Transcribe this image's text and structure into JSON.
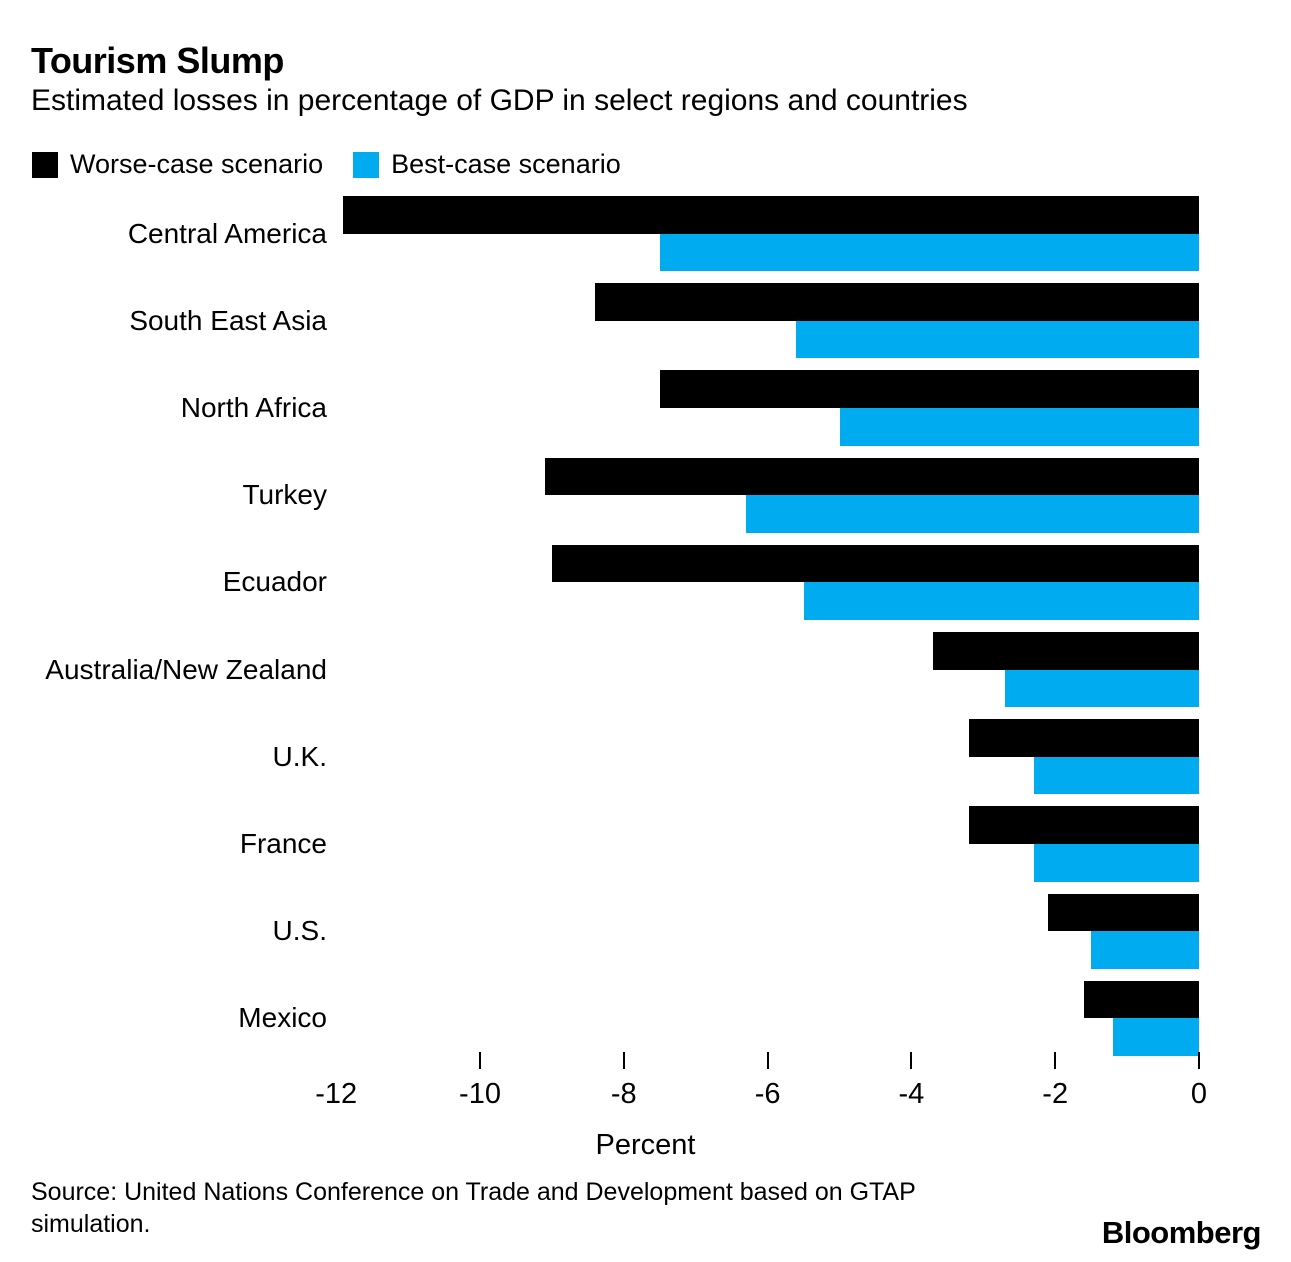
{
  "page": {
    "title": "Tourism Slump",
    "subtitle": "Estimated losses in percentage of GDP in select regions and countries",
    "source_line1": "Source: United Nations Conference on Trade and Development based on GTAP",
    "source_line2": "simulation.",
    "brand": "Bloomberg"
  },
  "legend": [
    {
      "label": "Worse-case scenario",
      "color": "#000000"
    },
    {
      "label": "Best-case scenario",
      "color": "#00abef"
    }
  ],
  "chart_data": {
    "type": "bar",
    "orientation": "horizontal",
    "title": "Tourism Slump",
    "subtitle": "Estimated losses in percentage of GDP in select regions and countries",
    "xlabel": "Percent",
    "xlim": [
      -12,
      0
    ],
    "xticks": [
      -12,
      -10,
      -8,
      -6,
      -4,
      -2,
      0
    ],
    "ticks_with_marks": [
      -10,
      -8,
      -6,
      -4,
      -2,
      0
    ],
    "grid": false,
    "legend_position": "top-left",
    "categories": [
      "Central America",
      "South East Asia",
      "North Africa",
      "Turkey",
      "Ecuador",
      "Australia/New Zealand",
      "U.K.",
      "France",
      "U.S.",
      "Mexico"
    ],
    "series": [
      {
        "name": "Worse-case scenario",
        "color": "#000000",
        "values": [
          -11.9,
          -8.4,
          -7.5,
          -9.1,
          -9.0,
          -3.7,
          -3.2,
          -3.2,
          -2.1,
          -1.6
        ]
      },
      {
        "name": "Best-case scenario",
        "color": "#00abef",
        "values": [
          -7.5,
          -5.6,
          -5.0,
          -6.3,
          -5.5,
          -2.7,
          -2.3,
          -2.3,
          -1.5,
          -1.2
        ]
      }
    ]
  }
}
